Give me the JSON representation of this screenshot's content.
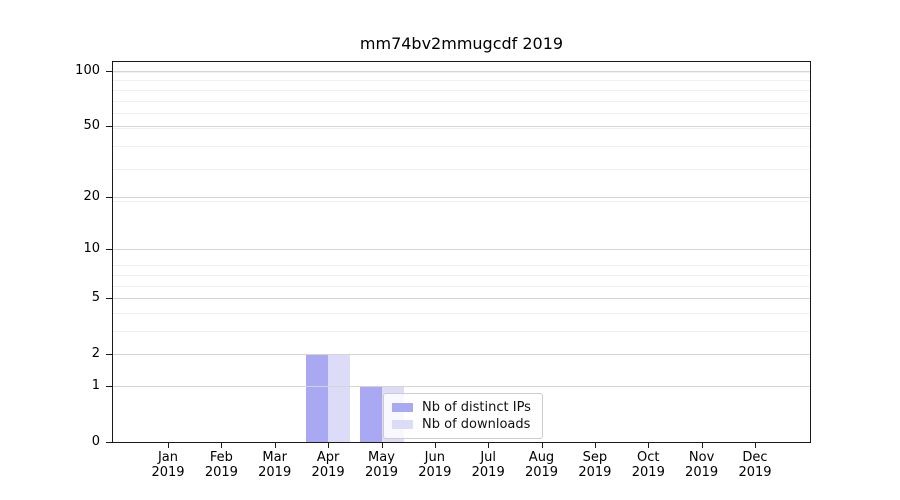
{
  "chart_data": {
    "type": "bar",
    "title": "mm74bv2mmugcdf 2019",
    "months": [
      "Jan",
      "Feb",
      "Mar",
      "Apr",
      "May",
      "Jun",
      "Jul",
      "Aug",
      "Sep",
      "Oct",
      "Nov",
      "Dec"
    ],
    "year": "2019",
    "series": [
      {
        "name": "Nb of distinct IPs",
        "color": "#a9a9f3",
        "values": [
          0,
          0,
          0,
          2,
          1,
          0,
          0,
          0,
          0,
          0,
          0,
          0
        ]
      },
      {
        "name": "Nb of downloads",
        "color": "#dcdcf9",
        "values": [
          0,
          0,
          0,
          2,
          1,
          0,
          0,
          0,
          0,
          0,
          0,
          0
        ]
      }
    ],
    "y_ticks": [
      0,
      1,
      2,
      5,
      10,
      20,
      50,
      100
    ],
    "ylim": [
      0,
      100
    ],
    "yscale": "log1p",
    "xlabel": "",
    "ylabel": "",
    "grid": true,
    "legend_position": "lower center"
  }
}
